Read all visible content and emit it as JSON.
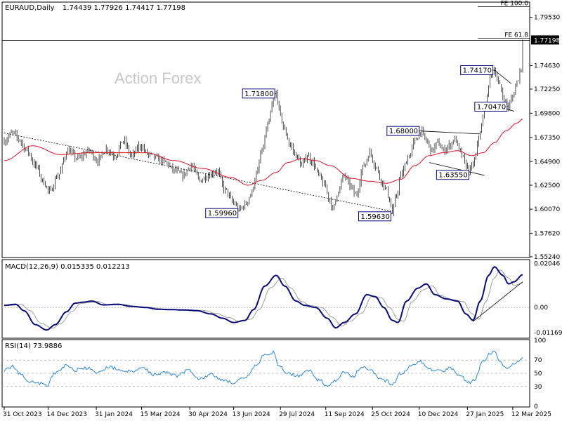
{
  "chart_data": {
    "type": "candlestick",
    "symbol": "EURAUD,Daily",
    "ohlc": [
      "1.74439",
      "1.77926",
      "1.74417",
      "1.77198"
    ],
    "watermark": "Action Forex",
    "colors": {
      "ma": "#e0102a",
      "macd": "#0a0a78",
      "signal": "#a0a0a0",
      "rsi": "#2f86d6",
      "candle": "#000000",
      "label_border": "#0a0a78"
    },
    "price_axis": {
      "ylim": [
        1.5524,
        1.81
      ],
      "ticks": [
        "1.79530",
        "1.77198",
        "1.74630",
        "1.72250",
        "1.69800",
        "1.67350",
        "1.64900",
        "1.62500",
        "1.60070",
        "1.57620",
        "1.55240"
      ],
      "current": "1.77198"
    },
    "x_axis": {
      "ticks": [
        {
          "label": "31 Oct 2023",
          "i": 0
        },
        {
          "label": "14 Dec 2023",
          "i": 31
        },
        {
          "label": "31 Jan 2024",
          "i": 65
        },
        {
          "label": "15 Mar 2024",
          "i": 97
        },
        {
          "label": "30 Apr 2024",
          "i": 131
        },
        {
          "label": "13 Jun 2024",
          "i": 162
        },
        {
          "label": "29 Jul 2024",
          "i": 195
        },
        {
          "label": "11 Sep 2024",
          "i": 227
        },
        {
          "label": "25 Oct 2024",
          "i": 260
        },
        {
          "label": "10 Dec 2024",
          "i": 293
        },
        {
          "label": "27 Jan 2025",
          "i": 327
        },
        {
          "label": "12 Mar 2025",
          "i": 359
        }
      ]
    },
    "closes_anchors": [
      [
        0,
        1.67
      ],
      [
        6,
        1.678
      ],
      [
        10,
        1.672
      ],
      [
        16,
        1.66
      ],
      [
        22,
        1.645
      ],
      [
        28,
        1.628
      ],
      [
        32,
        1.618
      ],
      [
        38,
        1.635
      ],
      [
        45,
        1.66
      ],
      [
        52,
        1.652
      ],
      [
        60,
        1.66
      ],
      [
        66,
        1.65
      ],
      [
        72,
        1.662
      ],
      [
        78,
        1.655
      ],
      [
        84,
        1.67
      ],
      [
        90,
        1.655
      ],
      [
        96,
        1.665
      ],
      [
        102,
        1.656
      ],
      [
        108,
        1.652
      ],
      [
        114,
        1.648
      ],
      [
        120,
        1.64
      ],
      [
        126,
        1.635
      ],
      [
        132,
        1.645
      ],
      [
        138,
        1.63
      ],
      [
        144,
        1.635
      ],
      [
        150,
        1.64
      ],
      [
        156,
        1.62
      ],
      [
        162,
        1.607
      ],
      [
        166,
        1.6
      ],
      [
        170,
        1.605
      ],
      [
        174,
        1.615
      ],
      [
        178,
        1.635
      ],
      [
        182,
        1.66
      ],
      [
        186,
        1.685
      ],
      [
        190,
        1.71
      ],
      [
        192,
        1.718
      ],
      [
        195,
        1.695
      ],
      [
        198,
        1.68
      ],
      [
        202,
        1.665
      ],
      [
        206,
        1.655
      ],
      [
        210,
        1.645
      ],
      [
        214,
        1.655
      ],
      [
        218,
        1.648
      ],
      [
        222,
        1.635
      ],
      [
        226,
        1.625
      ],
      [
        230,
        1.61
      ],
      [
        232,
        1.6
      ],
      [
        236,
        1.62
      ],
      [
        240,
        1.635
      ],
      [
        244,
        1.625
      ],
      [
        248,
        1.615
      ],
      [
        254,
        1.645
      ],
      [
        258,
        1.658
      ],
      [
        262,
        1.645
      ],
      [
        266,
        1.63
      ],
      [
        270,
        1.62
      ],
      [
        272,
        1.61
      ],
      [
        274,
        1.5963
      ],
      [
        277,
        1.615
      ],
      [
        280,
        1.635
      ],
      [
        286,
        1.655
      ],
      [
        290,
        1.67
      ],
      [
        294,
        1.68
      ],
      [
        298,
        1.67
      ],
      [
        302,
        1.66
      ],
      [
        306,
        1.668
      ],
      [
        310,
        1.66
      ],
      [
        314,
        1.665
      ],
      [
        318,
        1.672
      ],
      [
        322,
        1.658
      ],
      [
        326,
        1.645
      ],
      [
        329,
        1.64
      ],
      [
        332,
        1.65
      ],
      [
        336,
        1.68
      ],
      [
        340,
        1.705
      ],
      [
        343,
        1.735
      ],
      [
        346,
        1.7417
      ],
      [
        350,
        1.725
      ],
      [
        353,
        1.71
      ],
      [
        356,
        1.7047
      ],
      [
        359,
        1.715
      ],
      [
        362,
        1.73
      ],
      [
        365,
        1.7443
      ],
      [
        366,
        1.772
      ]
    ],
    "ma_anchors": [
      [
        0,
        1.65
      ],
      [
        20,
        1.665
      ],
      [
        40,
        1.656
      ],
      [
        60,
        1.658
      ],
      [
        80,
        1.658
      ],
      [
        100,
        1.658
      ],
      [
        120,
        1.65
      ],
      [
        140,
        1.642
      ],
      [
        160,
        1.633
      ],
      [
        172,
        1.625
      ],
      [
        182,
        1.63
      ],
      [
        192,
        1.638
      ],
      [
        200,
        1.648
      ],
      [
        210,
        1.652
      ],
      [
        220,
        1.65
      ],
      [
        230,
        1.645
      ],
      [
        245,
        1.632
      ],
      [
        258,
        1.629
      ],
      [
        270,
        1.627
      ],
      [
        280,
        1.631
      ],
      [
        290,
        1.645
      ],
      [
        300,
        1.655
      ],
      [
        310,
        1.658
      ],
      [
        320,
        1.66
      ],
      [
        330,
        1.655
      ],
      [
        338,
        1.658
      ],
      [
        346,
        1.668
      ],
      [
        354,
        1.68
      ],
      [
        362,
        1.688
      ],
      [
        366,
        1.692
      ]
    ],
    "labels": [
      {
        "text": "1.71800",
        "i": 192,
        "price": 1.718,
        "lx": 1,
        "side": "left"
      },
      {
        "text": "1.59960",
        "i": 166,
        "price": 1.5996,
        "lx": 1,
        "side": "left"
      },
      {
        "text": "1.59630",
        "i": 274,
        "price": 1.5963,
        "lx": 1,
        "side": "left"
      },
      {
        "text": "1.68000",
        "i": 294,
        "price": 1.68,
        "lx": 1,
        "side": "left"
      },
      {
        "text": "1.63550",
        "i": 329,
        "price": 1.6355,
        "lx": 1,
        "side": "left"
      },
      {
        "text": "1.74170",
        "i": 346,
        "price": 1.7417,
        "lx": 1,
        "side": "left"
      },
      {
        "text": "1.70470",
        "i": 356,
        "price": 1.7047,
        "lx": 1,
        "side": "left"
      }
    ],
    "fibo": [
      {
        "text": "FE 100.0",
        "price": 1.806
      },
      {
        "text": "FE 61.8",
        "price": 1.774
      }
    ],
    "macd": {
      "title": "MACD(12,26,9) 0.015335 0.012213",
      "ylim": [
        -0.014,
        0.022
      ],
      "ticks": [
        "0.02046",
        "0.00",
        "-0.011697"
      ],
      "anchors": [
        [
          0,
          0.001
        ],
        [
          8,
          0.0015
        ],
        [
          14,
          -0.0015
        ],
        [
          22,
          -0.008
        ],
        [
          30,
          -0.0105
        ],
        [
          36,
          -0.008
        ],
        [
          44,
          -0.002
        ],
        [
          50,
          0.002
        ],
        [
          56,
          0.0025
        ],
        [
          62,
          0.003
        ],
        [
          70,
          0.0012
        ],
        [
          80,
          0.0015
        ],
        [
          90,
          0.0005
        ],
        [
          100,
          0.0
        ],
        [
          108,
          -0.0008
        ],
        [
          118,
          -0.001
        ],
        [
          128,
          -0.0012
        ],
        [
          136,
          -0.0015
        ],
        [
          146,
          -0.003
        ],
        [
          154,
          -0.005
        ],
        [
          162,
          -0.007
        ],
        [
          170,
          -0.006
        ],
        [
          176,
          -0.001
        ],
        [
          184,
          0.01
        ],
        [
          192,
          0.015
        ],
        [
          198,
          0.01
        ],
        [
          206,
          0.003
        ],
        [
          212,
          0.001
        ],
        [
          220,
          0.0
        ],
        [
          228,
          -0.005
        ],
        [
          234,
          -0.0095
        ],
        [
          240,
          -0.007
        ],
        [
          248,
          -0.003
        ],
        [
          256,
          0.006
        ],
        [
          262,
          0.005
        ],
        [
          268,
          0.0
        ],
        [
          274,
          -0.006
        ],
        [
          278,
          -0.007
        ],
        [
          284,
          0.003
        ],
        [
          292,
          0.009
        ],
        [
          298,
          0.011
        ],
        [
          304,
          0.006
        ],
        [
          312,
          0.004
        ],
        [
          320,
          0.003
        ],
        [
          326,
          -0.003
        ],
        [
          331,
          -0.006
        ],
        [
          336,
          0.003
        ],
        [
          342,
          0.015
        ],
        [
          346,
          0.019
        ],
        [
          352,
          0.015
        ],
        [
          356,
          0.011
        ],
        [
          360,
          0.012
        ],
        [
          366,
          0.0153
        ]
      ],
      "signal_lag": 4
    },
    "rsi": {
      "title": "RSI(14) 73.9886",
      "ylim": [
        0,
        100
      ],
      "ticks": [
        "100",
        "70",
        "50",
        "30",
        "0"
      ],
      "levels": [
        70,
        50,
        30
      ],
      "anchors": [
        [
          0,
          55
        ],
        [
          6,
          60
        ],
        [
          12,
          48
        ],
        [
          18,
          38
        ],
        [
          24,
          35
        ],
        [
          30,
          32
        ],
        [
          36,
          50
        ],
        [
          44,
          62
        ],
        [
          50,
          55
        ],
        [
          58,
          58
        ],
        [
          66,
          50
        ],
        [
          74,
          60
        ],
        [
          82,
          55
        ],
        [
          90,
          52
        ],
        [
          98,
          58
        ],
        [
          106,
          48
        ],
        [
          114,
          52
        ],
        [
          122,
          46
        ],
        [
          130,
          55
        ],
        [
          138,
          42
        ],
        [
          146,
          48
        ],
        [
          154,
          40
        ],
        [
          162,
          36
        ],
        [
          170,
          42
        ],
        [
          178,
          62
        ],
        [
          184,
          78
        ],
        [
          190,
          82
        ],
        [
          194,
          60
        ],
        [
          200,
          50
        ],
        [
          208,
          46
        ],
        [
          214,
          56
        ],
        [
          222,
          40
        ],
        [
          228,
          32
        ],
        [
          234,
          38
        ],
        [
          240,
          52
        ],
        [
          246,
          44
        ],
        [
          252,
          60
        ],
        [
          258,
          56
        ],
        [
          264,
          44
        ],
        [
          270,
          38
        ],
        [
          274,
          32
        ],
        [
          280,
          50
        ],
        [
          288,
          62
        ],
        [
          294,
          68
        ],
        [
          300,
          56
        ],
        [
          308,
          54
        ],
        [
          316,
          58
        ],
        [
          322,
          46
        ],
        [
          328,
          36
        ],
        [
          332,
          40
        ],
        [
          338,
          68
        ],
        [
          343,
          80
        ],
        [
          346,
          83
        ],
        [
          350,
          66
        ],
        [
          354,
          58
        ],
        [
          358,
          62
        ],
        [
          362,
          66
        ],
        [
          366,
          74
        ]
      ]
    }
  }
}
